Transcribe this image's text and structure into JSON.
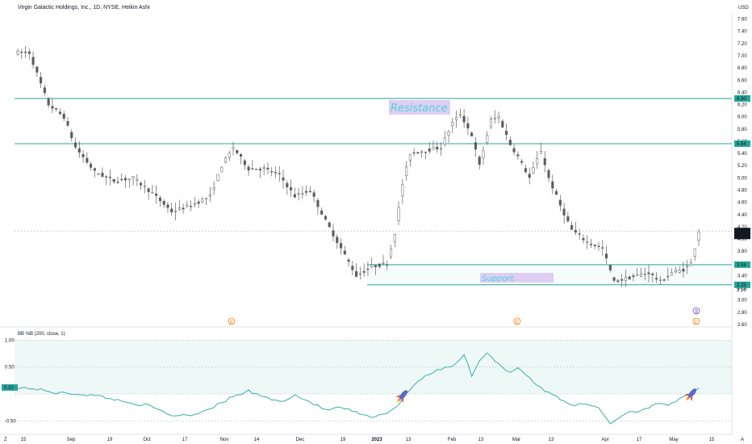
{
  "header": {
    "title": "Virgin Galactic Holdings, Inc., 1D, NYSE, Heikin Ashi",
    "currency": "USD"
  },
  "price_axis": {
    "ticks": [
      "7.60",
      "7.40",
      "7.20",
      "7.00",
      "6.80",
      "6.60",
      "6.40",
      "6.20",
      "6.00",
      "5.80",
      "5.60",
      "5.40",
      "5.20",
      "5.00",
      "4.80",
      "4.60",
      "4.40",
      "4.20",
      "4.00",
      "3.80",
      "3.60",
      "3.40",
      "3.20",
      "3.00",
      "2.80",
      "2.60"
    ],
    "badges": {
      "r1": "6.30",
      "r2": "5.56",
      "last1": "4.13",
      "last2": "4.09",
      "s1": "3.58",
      "s2": "3.25",
      "s2_under": "3.16"
    }
  },
  "time_axis": {
    "labels": [
      "15",
      "Sep",
      "19",
      "Oct",
      "17",
      "Nov",
      "14",
      "Dec",
      "19",
      "2023",
      "13",
      "Feb",
      "13",
      "Mar",
      "13",
      "Apr",
      "17",
      "May",
      "15"
    ]
  },
  "annotations": {
    "resistance": "Resistance",
    "support": "Support"
  },
  "indicator": {
    "title": "BB %B (200, close, 1)",
    "ticks": [
      "1.00",
      "0.50",
      "-0.50"
    ],
    "current": "0.10"
  },
  "colors": {
    "level_line": "#26a69a",
    "up_candle": "#ffffff",
    "down_candle": "#5d5d5d",
    "indicator_line": "#26a69a",
    "resistance_box": "#d9c7f0",
    "support_box": "#d9c7f0"
  },
  "footer": {
    "left": "Z",
    "right": "A"
  },
  "chart_data": [
    {
      "type": "candlestick",
      "title": "Virgin Galactic Holdings, Inc., 1D, NYSE, Heikin Ashi",
      "ylim": [
        2.6,
        7.7
      ],
      "levels": [
        6.3,
        5.56,
        3.58,
        3.25
      ],
      "anchors": [
        [
          0,
          7.05
        ],
        [
          3,
          7.05
        ],
        [
          8,
          6.2
        ],
        [
          12,
          6.0
        ],
        [
          15,
          5.5
        ],
        [
          20,
          5.1
        ],
        [
          25,
          4.95
        ],
        [
          30,
          5.0
        ],
        [
          35,
          4.75
        ],
        [
          40,
          4.45
        ],
        [
          45,
          4.55
        ],
        [
          50,
          4.7
        ],
        [
          53,
          5.2
        ],
        [
          56,
          5.5
        ],
        [
          60,
          5.15
        ],
        [
          64,
          5.15
        ],
        [
          68,
          5.05
        ],
        [
          72,
          4.7
        ],
        [
          76,
          4.8
        ],
        [
          80,
          4.3
        ],
        [
          84,
          3.85
        ],
        [
          88,
          3.4
        ],
        [
          92,
          3.55
        ],
        [
          96,
          3.6
        ],
        [
          98,
          4.1
        ],
        [
          100,
          4.9
        ],
        [
          102,
          5.4
        ],
        [
          106,
          5.45
        ],
        [
          110,
          5.5
        ],
        [
          113,
          5.9
        ],
        [
          115,
          6.05
        ],
        [
          118,
          5.7
        ],
        [
          120,
          5.2
        ],
        [
          123,
          5.95
        ],
        [
          125,
          6.0
        ],
        [
          128,
          5.55
        ],
        [
          130,
          5.35
        ],
        [
          133,
          5.0
        ],
        [
          136,
          5.45
        ],
        [
          138,
          5.0
        ],
        [
          141,
          4.55
        ],
        [
          144,
          4.15
        ],
        [
          148,
          3.95
        ],
        [
          152,
          3.85
        ],
        [
          155,
          3.3
        ],
        [
          158,
          3.35
        ],
        [
          161,
          3.4
        ],
        [
          164,
          3.45
        ],
        [
          167,
          3.3
        ],
        [
          170,
          3.45
        ],
        [
          173,
          3.5
        ],
        [
          175,
          3.6
        ],
        [
          177,
          4.13
        ]
      ],
      "last": [
        4.13,
        4.09
      ]
    },
    {
      "type": "line",
      "title": "BB %B (200, close, 1)",
      "ylim": [
        -0.6,
        1.05
      ],
      "yticks": [
        1.0,
        0.5,
        0.0,
        -0.5
      ],
      "anchors": [
        [
          0,
          0.12
        ],
        [
          4,
          0.1
        ],
        [
          10,
          0.02
        ],
        [
          16,
          0.0
        ],
        [
          22,
          -0.05
        ],
        [
          28,
          -0.15
        ],
        [
          34,
          -0.22
        ],
        [
          40,
          -0.4
        ],
        [
          46,
          -0.38
        ],
        [
          52,
          -0.2
        ],
        [
          56,
          -0.05
        ],
        [
          60,
          0.05
        ],
        [
          64,
          -0.05
        ],
        [
          68,
          -0.15
        ],
        [
          72,
          -0.02
        ],
        [
          76,
          -0.15
        ],
        [
          80,
          -0.3
        ],
        [
          84,
          -0.25
        ],
        [
          88,
          -0.35
        ],
        [
          92,
          -0.45
        ],
        [
          96,
          -0.35
        ],
        [
          99,
          -0.2
        ],
        [
          102,
          0.1
        ],
        [
          105,
          0.3
        ],
        [
          108,
          0.4
        ],
        [
          111,
          0.5
        ],
        [
          113,
          0.52
        ],
        [
          116,
          0.72
        ],
        [
          118,
          0.35
        ],
        [
          120,
          0.6
        ],
        [
          122,
          0.78
        ],
        [
          125,
          0.55
        ],
        [
          128,
          0.4
        ],
        [
          130,
          0.5
        ],
        [
          133,
          0.3
        ],
        [
          136,
          0.1
        ],
        [
          140,
          -0.05
        ],
        [
          144,
          -0.2
        ],
        [
          148,
          -0.2
        ],
        [
          151,
          -0.25
        ],
        [
          154,
          -0.55
        ],
        [
          158,
          -0.35
        ],
        [
          162,
          -0.3
        ],
        [
          166,
          -0.2
        ],
        [
          169,
          -0.2
        ],
        [
          172,
          -0.1
        ],
        [
          175,
          0.0
        ],
        [
          177,
          0.1
        ]
      ]
    }
  ]
}
